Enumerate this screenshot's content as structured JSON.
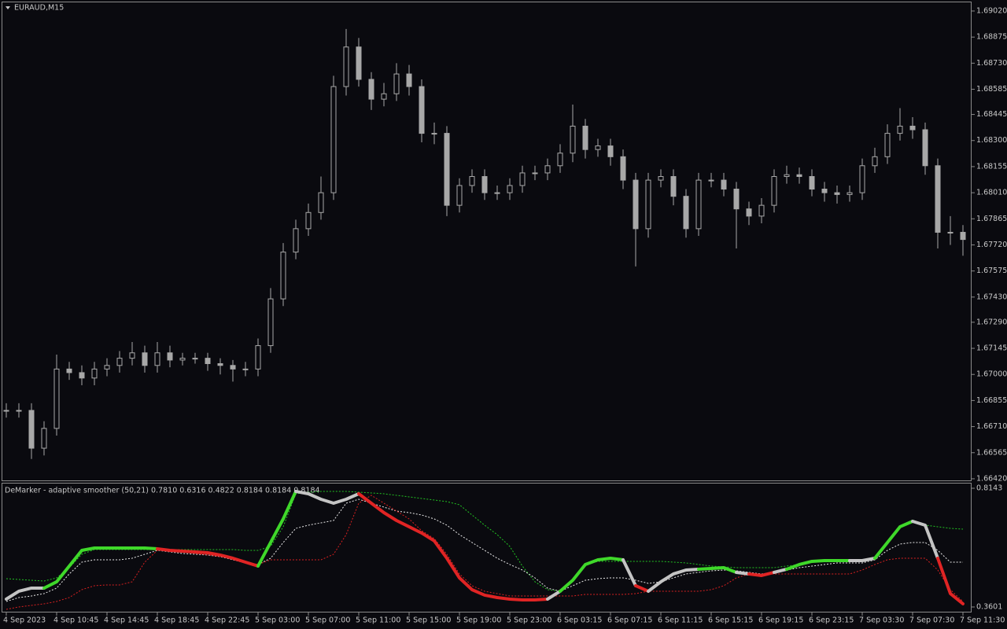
{
  "chart_data": [
    {
      "type": "candlestick",
      "title": "EURAUD,M15",
      "color": "#a8a8a8",
      "close": [
        1.668,
        1.668,
        1.6659,
        1.667,
        1.6703,
        1.6701,
        1.6698,
        1.6703,
        1.6705,
        1.6709,
        1.6712,
        1.6705,
        1.6712,
        1.6708,
        1.6709,
        1.6709,
        1.6706,
        1.6705,
        1.6703,
        1.6703,
        1.6716,
        1.6742,
        1.6768,
        1.6781,
        1.679,
        1.6801,
        1.686,
        1.6882,
        1.6864,
        1.6853,
        1.6856,
        1.6867,
        1.686,
        1.6834,
        1.6834,
        1.6794,
        1.6805,
        1.681,
        1.6801,
        1.6801,
        1.6805,
        1.6812,
        1.6812,
        1.6816,
        1.6823,
        1.6838,
        1.6825,
        1.6827,
        1.6821,
        1.6808,
        1.6781,
        1.6808,
        1.681,
        1.6799,
        1.6781,
        1.6808,
        1.6808,
        1.6803,
        1.6792,
        1.6788,
        1.6794,
        1.681,
        1.6811,
        1.681,
        1.6803,
        1.6801,
        1.68,
        1.6801,
        1.6816,
        1.6821,
        1.6834,
        1.6838,
        1.6836,
        1.6816,
        1.6779,
        1.6779,
        1.6775
      ],
      "high": [
        1.6684,
        1.6684,
        1.6684,
        1.6674,
        1.6711,
        1.6707,
        1.6705,
        1.6707,
        1.6709,
        1.6713,
        1.6718,
        1.6716,
        1.6718,
        1.6716,
        1.6712,
        1.6712,
        1.6712,
        1.6709,
        1.6708,
        1.6707,
        1.672,
        1.6748,
        1.6773,
        1.6786,
        1.6795,
        1.681,
        1.6866,
        1.6892,
        1.6887,
        1.6868,
        1.6862,
        1.6873,
        1.6872,
        1.6864,
        1.684,
        1.6838,
        1.6809,
        1.6814,
        1.6814,
        1.6805,
        1.6809,
        1.6816,
        1.6816,
        1.682,
        1.6828,
        1.685,
        1.6842,
        1.6831,
        1.6831,
        1.6825,
        1.6812,
        1.6812,
        1.6814,
        1.6814,
        1.6803,
        1.6812,
        1.6812,
        1.6812,
        1.6807,
        1.6796,
        1.6798,
        1.6814,
        1.6816,
        1.6815,
        1.6814,
        1.6807,
        1.6805,
        1.6805,
        1.682,
        1.6826,
        1.6839,
        1.6848,
        1.6843,
        1.684,
        1.682,
        1.6788,
        1.6783
      ],
      "low": [
        1.6676,
        1.6676,
        1.6653,
        1.6655,
        1.6666,
        1.6697,
        1.6694,
        1.6694,
        1.6699,
        1.6701,
        1.6705,
        1.6701,
        1.6701,
        1.6704,
        1.6705,
        1.6706,
        1.6702,
        1.67,
        1.6696,
        1.6699,
        1.6699,
        1.6712,
        1.6738,
        1.6764,
        1.6777,
        1.6786,
        1.6797,
        1.6855,
        1.686,
        1.6847,
        1.6849,
        1.6852,
        1.6855,
        1.6829,
        1.6828,
        1.6788,
        1.679,
        1.6801,
        1.6797,
        1.6797,
        1.6797,
        1.6801,
        1.6808,
        1.6808,
        1.6812,
        1.6818,
        1.682,
        1.6821,
        1.6816,
        1.6803,
        1.676,
        1.6776,
        1.6804,
        1.6794,
        1.6776,
        1.6777,
        1.6804,
        1.6799,
        1.677,
        1.6783,
        1.6784,
        1.679,
        1.6806,
        1.6806,
        1.6799,
        1.6796,
        1.6795,
        1.6796,
        1.6797,
        1.6812,
        1.6817,
        1.683,
        1.6831,
        1.6811,
        1.677,
        1.6772,
        1.6766
      ],
      "ylim": [
        1.66411,
        1.69068
      ],
      "yticks": [
        {
          "value": 1.6902,
          "label": "1.69020"
        },
        1.68875,
        {
          "value": 1.6873,
          "label": "1.68730"
        },
        1.68585,
        1.68445,
        {
          "value": 1.683,
          "label": "1.68300"
        },
        1.68155,
        {
          "value": 1.6801,
          "label": "1.68010"
        },
        1.67865,
        {
          "value": 1.6772,
          "label": "1.67720"
        },
        1.67575,
        {
          "value": 1.6743,
          "label": "1.67430"
        },
        {
          "value": 1.6729,
          "label": "1.67290"
        },
        1.67145,
        {
          "value": 1.67,
          "label": "1.67000"
        },
        1.66855,
        {
          "value": 1.6671,
          "label": "1.66710"
        },
        1.66565,
        {
          "value": 1.6642,
          "label": "1.66420"
        }
      ]
    },
    {
      "type": "line",
      "title": "DeMarker - adaptive smoother (50,21) 0.7810 0.6316 0.4822 0.8184 0.8184 0.8184",
      "categories": [
        "4 Sep 2023",
        null,
        null,
        null,
        "4 Sep 10:45",
        null,
        null,
        null,
        "4 Sep 14:45",
        null,
        null,
        null,
        "4 Sep 18:45",
        null,
        null,
        null,
        "4 Sep 22:45",
        null,
        null,
        null,
        "5 Sep 03:00",
        null,
        null,
        null,
        "5 Sep 07:00",
        null,
        null,
        null,
        "5 Sep 11:00",
        null,
        null,
        null,
        "5 Sep 15:00",
        null,
        null,
        null,
        "5 Sep 19:00",
        null,
        null,
        null,
        "5 Sep 23:00",
        null,
        null,
        null,
        "6 Sep 03:15",
        null,
        null,
        null,
        "6 Sep 07:15",
        null,
        null,
        null,
        "6 Sep 11:15",
        null,
        null,
        null,
        "6 Sep 15:15",
        null,
        null,
        null,
        "6 Sep 19:15",
        null,
        null,
        null,
        "6 Sep 23:15",
        null,
        null,
        null,
        "7 Sep 03:30",
        null,
        null,
        null,
        "7 Sep 07:30",
        null,
        null,
        null,
        "7 Sep 11:30"
      ],
      "ylim": [
        0.342,
        0.8354
      ],
      "yticks": [
        0.8143,
        0.3601
      ],
      "series": [
        {
          "color": "#22c322",
          "dash": true,
          "values": [
            0.4684,
            0.4654,
            0.4624,
            0.4594,
            0.4714,
            0.5105,
            0.5617,
            0.5797,
            0.5797,
            0.5797,
            0.5797,
            0.5797,
            0.5797,
            0.5797,
            0.5797,
            0.5797,
            0.5797,
            0.5797,
            0.5797,
            0.5767,
            0.5767,
            0.5918,
            0.667,
            0.7933,
            0.7993,
            0.8023,
            0.8023,
            0.8023,
            0.7993,
            0.7963,
            0.7933,
            0.7873,
            0.7813,
            0.7752,
            0.7692,
            0.7632,
            0.7512,
            0.7121,
            0.673,
            0.6369,
            0.5918,
            0.5166,
            0.4564,
            0.4263,
            0.4203,
            0.4624,
            0.5226,
            0.5346,
            0.5346,
            0.5346,
            0.5346,
            0.5346,
            0.5346,
            0.5316,
            0.5286,
            0.5226,
            0.5166,
            0.5135,
            0.5105,
            0.5105,
            0.5105,
            0.5105,
            0.5166,
            0.5226,
            0.5346,
            0.5376,
            0.5376,
            0.5376,
            0.5376,
            0.5466,
            0.6068,
            0.667,
            0.685,
            0.673,
            0.667,
            0.6609,
            0.6579
          ]
        },
        {
          "color": "#e8e8e8",
          "dash": true,
          "values": [
            0.3812,
            0.3962,
            0.4022,
            0.4113,
            0.4323,
            0.4865,
            0.5316,
            0.5406,
            0.5406,
            0.5406,
            0.5466,
            0.5617,
            0.5767,
            0.5707,
            0.5647,
            0.5617,
            0.5587,
            0.5526,
            0.5406,
            0.5286,
            0.5226,
            0.5466,
            0.6068,
            0.6609,
            0.673,
            0.682,
            0.691,
            0.7572,
            0.7722,
            0.7572,
            0.7422,
            0.7271,
            0.7211,
            0.7121,
            0.697,
            0.673,
            0.6369,
            0.6068,
            0.5767,
            0.5466,
            0.5226,
            0.5015,
            0.4714,
            0.4323,
            0.4203,
            0.4414,
            0.4624,
            0.4684,
            0.4714,
            0.4714,
            0.4624,
            0.4504,
            0.4564,
            0.4714,
            0.4865,
            0.4925,
            0.4985,
            0.5015,
            0.4985,
            0.4925,
            0.4865,
            0.4925,
            0.5015,
            0.5105,
            0.5166,
            0.5226,
            0.5286,
            0.5286,
            0.5286,
            0.5406,
            0.5767,
            0.6008,
            0.6068,
            0.6068,
            0.5767,
            0.5316,
            0.5316
          ]
        },
        {
          "color": "#d82020",
          "dash": true,
          "values": [
            0.3511,
            0.3601,
            0.3662,
            0.3722,
            0.3812,
            0.3962,
            0.4263,
            0.4414,
            0.4444,
            0.4444,
            0.4564,
            0.5316,
            0.5767,
            0.5767,
            0.5707,
            0.5647,
            0.5587,
            0.5526,
            0.5466,
            0.5316,
            0.5226,
            0.5406,
            0.5406,
            0.5406,
            0.5406,
            0.5406,
            0.5617,
            0.6369,
            0.7572,
            0.7873,
            0.7572,
            0.7271,
            0.697,
            0.6519,
            0.6218,
            0.5617,
            0.4865,
            0.4414,
            0.4203,
            0.4113,
            0.4022,
            0.4022,
            0.4022,
            0.4022,
            0.4022,
            0.4022,
            0.4083,
            0.4083,
            0.4083,
            0.4083,
            0.4113,
            0.4203,
            0.4203,
            0.4203,
            0.4203,
            0.4203,
            0.4263,
            0.4414,
            0.4714,
            0.4865,
            0.4865,
            0.4865,
            0.4865,
            0.4865,
            0.4865,
            0.4865,
            0.4865,
            0.4865,
            0.5015,
            0.5226,
            0.5406,
            0.5466,
            0.5466,
            0.5466,
            0.5015,
            0.4263,
            0.3812
          ]
        },
        {
          "dash": false,
          "values": [
            0.3902,
            0.4203,
            0.4323,
            0.4323,
            0.4564,
            0.5166,
            0.5767,
            0.5857,
            0.5857,
            0.5857,
            0.5857,
            0.5857,
            0.5827,
            0.5767,
            0.5737,
            0.5707,
            0.5677,
            0.5587,
            0.5466,
            0.5316,
            0.5166,
            0.6068,
            0.697,
            0.8023,
            0.7933,
            0.7722,
            0.7572,
            0.7722,
            0.7933,
            0.7572,
            0.7211,
            0.691,
            0.667,
            0.6429,
            0.6128,
            0.5466,
            0.4714,
            0.4263,
            0.4053,
            0.3962,
            0.3902,
            0.3872,
            0.3872,
            0.3902,
            0.4203,
            0.4624,
            0.5226,
            0.5406,
            0.5466,
            0.5406,
            0.4414,
            0.4203,
            0.4564,
            0.4865,
            0.5015,
            0.5045,
            0.5075,
            0.5105,
            0.4925,
            0.4865,
            0.4805,
            0.4925,
            0.5045,
            0.5226,
            0.5346,
            0.5376,
            0.5376,
            0.5376,
            0.5376,
            0.5466,
            0.6068,
            0.667,
            0.688,
            0.673,
            0.5466,
            0.4113,
            0.3722
          ],
          "colors": [
            "#c4c4c4",
            "#c4c4c4",
            "#c4c4c4",
            "#3fd82a",
            "#3fd82a",
            "#3fd82a",
            "#3fd82a",
            "#3fd82a",
            "#3fd82a",
            "#3fd82a",
            "#3fd82a",
            "#3fd82a",
            "#e02424",
            "#e02424",
            "#e02424",
            "#e02424",
            "#e02424",
            "#e02424",
            "#e02424",
            "#e02424",
            "#3fd82a",
            "#3fd82a",
            "#3fd82a",
            "#c4c4c4",
            "#c4c4c4",
            "#c4c4c4",
            "#c4c4c4",
            "#c4c4c4",
            "#e02424",
            "#e02424",
            "#e02424",
            "#e02424",
            "#e02424",
            "#e02424",
            "#e02424",
            "#e02424",
            "#e02424",
            "#e02424",
            "#e02424",
            "#e02424",
            "#e02424",
            "#e02424",
            "#e02424",
            "#c4c4c4",
            "#3fd82a",
            "#3fd82a",
            "#3fd82a",
            "#3fd82a",
            "#3fd82a",
            "#c4c4c4",
            "#e02424",
            "#c4c4c4",
            "#c4c4c4",
            "#c4c4c4",
            "#c4c4c4",
            "#3fd82a",
            "#3fd82a",
            "#3fd82a",
            "#c4c4c4",
            "#e02424",
            "#e02424",
            "#c4c4c4",
            "#3fd82a",
            "#3fd82a",
            "#3fd82a",
            "#3fd82a",
            "#3fd82a",
            "#c4c4c4",
            "#c4c4c4",
            "#3fd82a",
            "#3fd82a",
            "#3fd82a",
            "#c4c4c4",
            "#c4c4c4",
            "#e02424",
            "#e02424",
            "#e02424"
          ]
        }
      ]
    }
  ]
}
